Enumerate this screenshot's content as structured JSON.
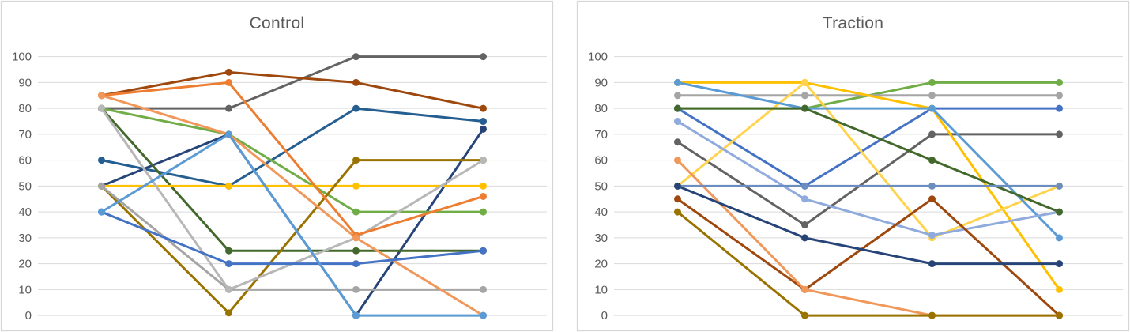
{
  "figure": {
    "description": "Two side-by-side multi-series line charts with round markers, four unlabeled x positions each, horizontal gridlines every 10 units",
    "gridline_color": "#d9d9d9",
    "axis_label_color": "#595959",
    "title_color": "#595959",
    "panel_border_color": "#d6d6d6"
  },
  "chart_data": [
    {
      "type": "line",
      "title": "Control",
      "xlabel": "",
      "ylabel": "",
      "x_categories": [
        "",
        "",
        "",
        ""
      ],
      "y_min": 0,
      "y_max": 100,
      "y_ticks": [
        0,
        10,
        20,
        30,
        40,
        50,
        60,
        70,
        80,
        90,
        100
      ],
      "grid": true,
      "legend": false,
      "series": [
        {
          "name": "dark-gray",
          "color": "#636363",
          "values": [
            80,
            80,
            100,
            100
          ]
        },
        {
          "name": "brown",
          "color": "#9E480E",
          "values": [
            85,
            94,
            90,
            80
          ]
        },
        {
          "name": "steel-blue",
          "color": "#255E91",
          "values": [
            60,
            50,
            80,
            75
          ]
        },
        {
          "name": "navy",
          "color": "#264478",
          "values": [
            50,
            70,
            0,
            72
          ]
        },
        {
          "name": "green",
          "color": "#70AD47",
          "values": [
            80,
            70,
            40,
            40
          ]
        },
        {
          "name": "dark-green",
          "color": "#43682B",
          "values": [
            80,
            25,
            25,
            25
          ]
        },
        {
          "name": "gold",
          "color": "#FFC000",
          "values": [
            50,
            50,
            50,
            50
          ]
        },
        {
          "name": "olive",
          "color": "#997300",
          "values": [
            50,
            1,
            60,
            60
          ]
        },
        {
          "name": "gray",
          "color": "#A5A5A5",
          "values": [
            50,
            10,
            10,
            10
          ]
        },
        {
          "name": "light-gray",
          "color": "#B7B7B7",
          "values": [
            80,
            10,
            30,
            60
          ]
        },
        {
          "name": "orange",
          "color": "#ED7D31",
          "values": [
            85,
            90,
            31,
            46
          ]
        },
        {
          "name": "salmon",
          "color": "#F1975A",
          "values": [
            85,
            70,
            30,
            0
          ]
        },
        {
          "name": "royal-blue",
          "color": "#4472C4",
          "values": [
            40,
            20,
            20,
            25
          ]
        },
        {
          "name": "sky-blue",
          "color": "#5B9BD5",
          "values": [
            40,
            70,
            0,
            0
          ]
        }
      ]
    },
    {
      "type": "line",
      "title": "Traction",
      "xlabel": "",
      "ylabel": "",
      "x_categories": [
        "",
        "",
        "",
        ""
      ],
      "y_min": 0,
      "y_max": 100,
      "y_ticks": [
        0,
        10,
        20,
        30,
        40,
        50,
        60,
        70,
        80,
        90,
        100
      ],
      "grid": true,
      "legend": false,
      "series": [
        {
          "name": "green",
          "color": "#70AD47",
          "values": [
            80,
            80,
            90,
            90
          ]
        },
        {
          "name": "gray",
          "color": "#A5A5A5",
          "values": [
            85,
            85,
            85,
            85
          ]
        },
        {
          "name": "royal-blue",
          "color": "#4472C4",
          "values": [
            80,
            50,
            80,
            80
          ]
        },
        {
          "name": "dark-gray",
          "color": "#636363",
          "values": [
            67,
            35,
            70,
            70
          ]
        },
        {
          "name": "gold",
          "color": "#FFC000",
          "values": [
            90,
            90,
            80,
            10
          ]
        },
        {
          "name": "amber",
          "color": "#FFD34D",
          "values": [
            50,
            90,
            30,
            50
          ]
        },
        {
          "name": "sky-blue",
          "color": "#5B9BD5",
          "values": [
            90,
            80,
            80,
            30
          ]
        },
        {
          "name": "light-blue",
          "color": "#8FAADC",
          "values": [
            75,
            45,
            31,
            40
          ]
        },
        {
          "name": "dark-green",
          "color": "#43682B",
          "values": [
            80,
            80,
            60,
            40
          ]
        },
        {
          "name": "brown",
          "color": "#9E480E",
          "values": [
            45,
            10,
            45,
            0
          ]
        },
        {
          "name": "salmon",
          "color": "#F1975A",
          "values": [
            60,
            10,
            0,
            0
          ]
        },
        {
          "name": "olive",
          "color": "#997300",
          "values": [
            40,
            0,
            0,
            0
          ]
        },
        {
          "name": "periwinkle",
          "color": "#6C8EBF",
          "values": [
            50,
            50,
            50,
            50
          ]
        },
        {
          "name": "navy",
          "color": "#264478",
          "values": [
            50,
            30,
            20,
            20
          ]
        }
      ]
    }
  ]
}
